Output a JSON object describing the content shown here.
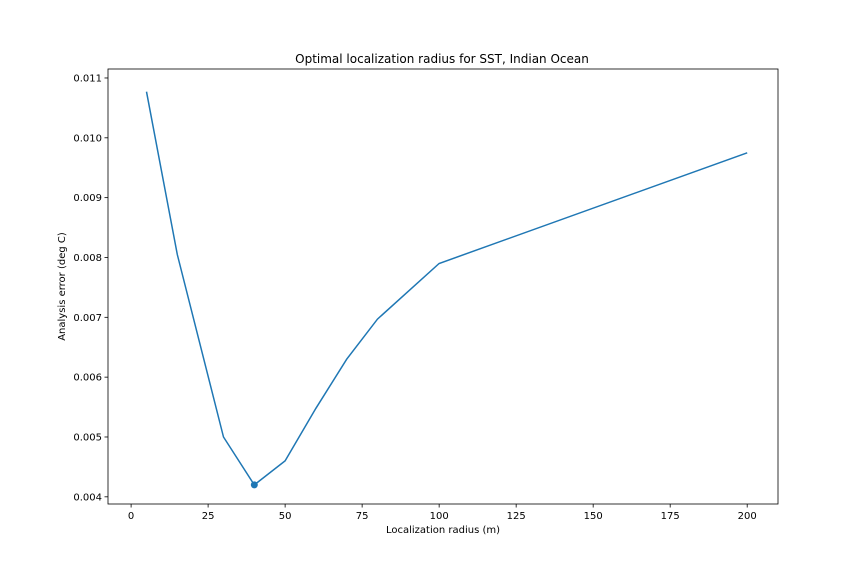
{
  "chart_data": {
    "type": "line",
    "title": "Optimal localization radius for SST, Indian Ocean",
    "xlabel": "Localization radius (m)",
    "ylabel": "Analysis error (deg C)",
    "xlim": [
      -7.5,
      210
    ],
    "ylim": [
      0.00388,
      0.01115
    ],
    "xticks": [
      0,
      25,
      50,
      75,
      100,
      125,
      150,
      175,
      200
    ],
    "xtick_labels": [
      "0",
      "25",
      "50",
      "75",
      "100",
      "125",
      "150",
      "175",
      "200"
    ],
    "yticks": [
      0.004,
      0.005,
      0.006,
      0.007,
      0.008,
      0.009,
      0.01,
      0.011
    ],
    "ytick_labels": [
      "0.004",
      "0.005",
      "0.006",
      "0.007",
      "0.008",
      "0.009",
      "0.010",
      "0.011"
    ],
    "grid": false,
    "series": [
      {
        "color": "#1f77b4",
        "x": [
          5,
          15,
          30,
          40,
          50,
          60,
          70,
          80,
          100,
          200
        ],
        "y": [
          0.01077,
          0.00805,
          0.005,
          0.0042,
          0.0046,
          0.00548,
          0.0063,
          0.00697,
          0.0079,
          0.00975
        ]
      }
    ],
    "highlight_point": {
      "x": 40,
      "y": 0.0042,
      "color": "#1f77b4"
    }
  }
}
